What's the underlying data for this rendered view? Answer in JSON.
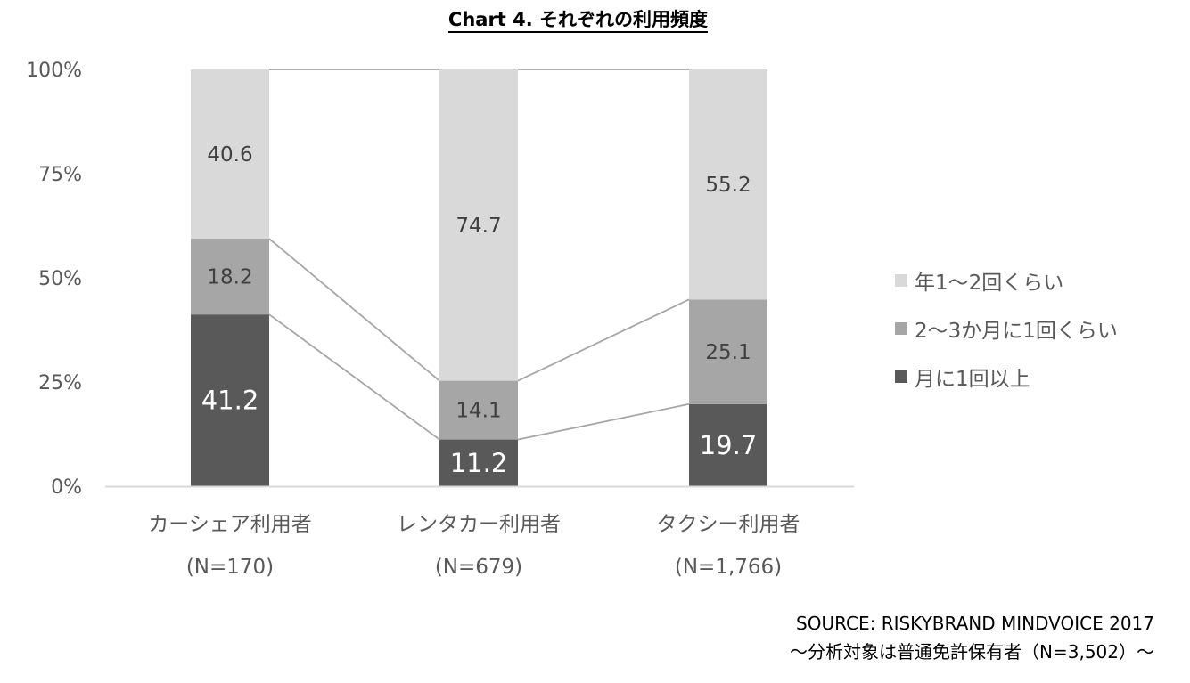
{
  "chart_data": {
    "type": "bar",
    "stacked": true,
    "percent": true,
    "title": "Chart 4.  それぞれの利用頻度",
    "categories": [
      "カーシェア利用者",
      "レンタカー利用者",
      "タクシー利用者"
    ],
    "category_n": [
      "(N=170)",
      "(N=679)",
      "(N=1,766)"
    ],
    "series": [
      {
        "name": "月に1回以上",
        "values": [
          41.2,
          11.2,
          19.7
        ],
        "color": "#595959"
      },
      {
        "name": "2～3か月に1回くらい",
        "values": [
          18.2,
          14.1,
          25.1
        ],
        "color": "#a6a6a6"
      },
      {
        "name": "年1～2回くらい",
        "values": [
          40.6,
          74.7,
          55.2
        ],
        "color": "#d9d9d9"
      }
    ],
    "yticks": [
      "0%",
      "25%",
      "50%",
      "75%",
      "100%"
    ],
    "ylim": [
      0,
      100
    ],
    "legend_position": "right",
    "series_lines": true
  },
  "source": {
    "line1": "SOURCE: RISKYBRAND MINDVOICE 2017",
    "line2": "～分析対象は普通免許保有者（N=3,502）～"
  }
}
